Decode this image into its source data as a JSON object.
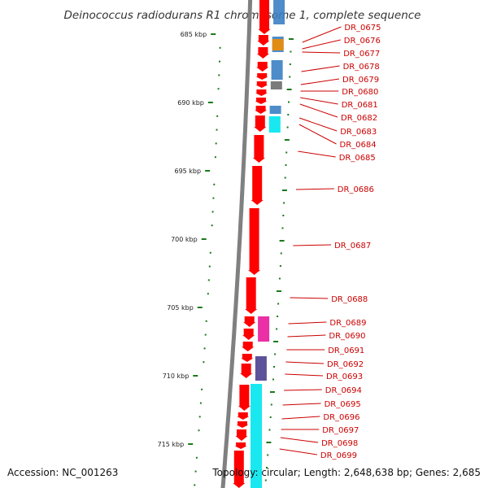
{
  "title": "Deinococcus radiodurans R1 chromosome 1, complete sequence",
  "accession": "Accession: NC_001263",
  "topology": "Topology: circular; Length: 2,648,638 bp; Genes: 2,685",
  "colors": {
    "backbone": "#808080",
    "forward_gene": "#ff0000",
    "tick": "#1a7a1a",
    "label": "#cc0000",
    "category_blue": "#3b7fc4",
    "category_cyan": "#00e5ee",
    "category_magenta": "#e8199a",
    "category_orange": "#f28c00",
    "category_navy": "#4a3f8f",
    "category_gray": "#6d6d6d"
  },
  "scale": {
    "unit": "kbp",
    "labels": [
      "685 kbp",
      "690 kbp",
      "695 kbp",
      "700 kbp",
      "705 kbp",
      "710 kbp",
      "715 kbp"
    ]
  },
  "genes": [
    "DR_0675",
    "DR_0676",
    "DR_0677",
    "DR_0678",
    "DR_0679",
    "DR_0680",
    "DR_0681",
    "DR_0682",
    "DR_0683",
    "DR_0684",
    "DR_0685",
    "DR_0686",
    "DR_0687",
    "DR_0688",
    "DR_0689",
    "DR_0690",
    "DR_0691",
    "DR_0692",
    "DR_0693",
    "DR_0694",
    "DR_0695",
    "DR_0696",
    "DR_0697",
    "DR_0698",
    "DR_0699"
  ]
}
